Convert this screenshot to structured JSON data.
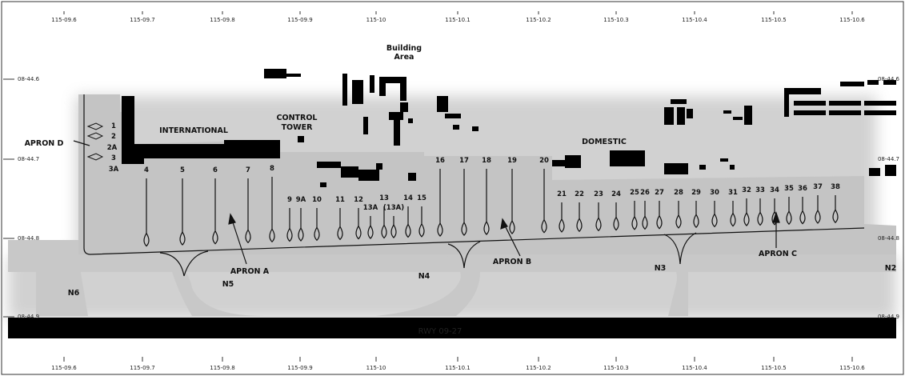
{
  "map": {
    "coords_top": [
      "115-09.6",
      "115-09.7",
      "115-09.8",
      "115-09.9",
      "115-10",
      "115-10.1",
      "115-10.2",
      "115-10.3",
      "115-10.4",
      "115-10.5",
      "115-10.6"
    ],
    "coords_bottom": [
      "115-09.6",
      "115-09.7",
      "115-09.8",
      "115-09.9",
      "115-10",
      "115-10.1",
      "115-10.2",
      "115-10.3",
      "115-10.4",
      "115-10.5",
      "115-10.6"
    ],
    "lat_left": [
      "08-44.6",
      "08-44.7",
      "08-44.8",
      "08-44.9"
    ],
    "lat_right": [
      "08-44.6",
      "08-44.7",
      "08-44.8",
      "08-44.9"
    ],
    "building_area": [
      "Building",
      "Area"
    ],
    "international": "INTERNATIONAL",
    "control_tower": [
      "CONTROL",
      "TOWER"
    ],
    "domestic": "DOMESTIC",
    "apron_d": "APRON D",
    "apron_a": "APRON A",
    "apron_b": "APRON B",
    "apron_c": "APRON C",
    "taxiways": [
      "N6",
      "N5",
      "N4",
      "N3",
      "N2"
    ],
    "runway": "RWY 09-27",
    "apron_d_gates": [
      "1",
      "2",
      "2A",
      "3",
      "3A"
    ],
    "gates": [
      "4",
      "5",
      "6",
      "7",
      "8",
      "9",
      "9A",
      "10",
      "11",
      "12",
      "13A",
      "13",
      "(13A)",
      "14",
      "15",
      "16",
      "17",
      "18",
      "19",
      "20",
      "21",
      "22",
      "23",
      "24",
      "25",
      "26",
      "27",
      "28",
      "29",
      "30",
      "31",
      "32",
      "33",
      "34",
      "35",
      "36",
      "37",
      "38"
    ],
    "colors": {
      "apron": "#c4c4c4",
      "taxiway": "#c8c8c8",
      "building": "#000000",
      "runway": "#000000",
      "background": "#ffffff"
    }
  }
}
